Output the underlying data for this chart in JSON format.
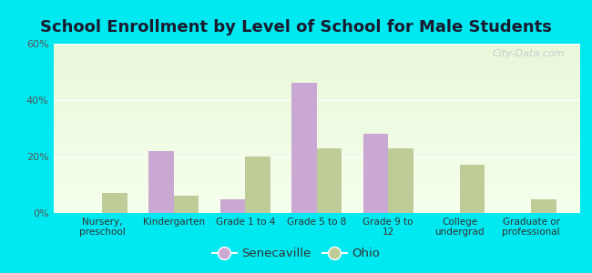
{
  "title": "School Enrollment by Level of School for Male Students",
  "categories": [
    "Nursery,\npreschool",
    "Kindergarten",
    "Grade 1 to 4",
    "Grade 5 to 8",
    "Grade 9 to\n12",
    "College\nundergrad",
    "Graduate or\nprofessional"
  ],
  "senecaville": [
    0,
    22,
    5,
    46,
    28,
    0,
    0
  ],
  "ohio": [
    7,
    6,
    20,
    23,
    23,
    17,
    5
  ],
  "senecaville_color": "#c9a8d4",
  "ohio_color": "#c0cc98",
  "ylim": [
    0,
    60
  ],
  "yticks": [
    0,
    20,
    40,
    60
  ],
  "ytick_labels": [
    "0%",
    "20%",
    "40%",
    "60%"
  ],
  "background_outer": "#00e8f0",
  "title_fontsize": 13,
  "bar_width": 0.35,
  "legend_labels": [
    "Senecaville",
    "Ohio"
  ],
  "watermark": "City-Data.com"
}
